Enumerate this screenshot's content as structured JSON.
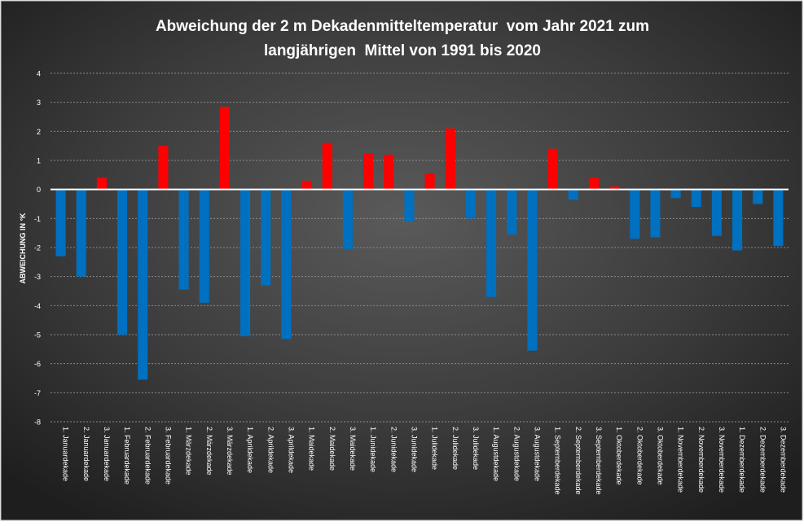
{
  "chart_data": {
    "type": "bar",
    "title_line1": "Abweichung der 2 m Dekadenmitteltemperatur  vom Jahr 2021 zum",
    "title_line2": "langjährigen  Mittel von 1991 bis 2020",
    "ylabel": "ABWEICHUNG IN °K",
    "xlabel": "",
    "ylim": [
      -8,
      4
    ],
    "yticks": [
      "4",
      "3",
      "2",
      "1",
      "0",
      "-1",
      "-2",
      "-3",
      "-4",
      "-5",
      "-6",
      "-7",
      "-8"
    ],
    "grid": true,
    "legend": "none",
    "positive_color": "#ff0000",
    "negative_color": "#0070c0",
    "background_color": "#3a3a3a",
    "categories": [
      "1. Januardekade",
      "2. Januardekade",
      "3. Januardekade",
      "1. Februardekade",
      "2. Februardekade",
      "3. Februardekade",
      "1. Märzdekade",
      "2. Märzdekade",
      "3. Märzdekade",
      "1. Aprildekade",
      "2. Aprildekade",
      "3. Aprildekade",
      "1. Maidekade",
      "2. Maidekade",
      "3. Maidekade",
      "1. Junidekade",
      "2. Junidekade",
      "3. Junidekade",
      "1. Julidekade",
      "2. Julidekade",
      "3. Julidekade",
      "1. Augustdekade",
      "2. Augustdekade",
      "3. Augustdekade",
      "1. Septemberdekade",
      "2. Septemberdekade",
      "3. Septemberdekade",
      "1. Oktoberdekade",
      "2. Oktoberdekade",
      "3. Oktoberdekade",
      "1. Novemberdekade",
      "2. Novemberdekade",
      "3. Novemberdekade",
      "1. Dezemberdekade",
      "2. Dezemberdekade",
      "3. Dezemberdekade"
    ],
    "values": [
      -2.3,
      -3.0,
      0.4,
      -5.0,
      -6.55,
      1.5,
      -3.45,
      -3.9,
      2.85,
      -5.05,
      -3.3,
      -5.15,
      0.3,
      1.6,
      -2.05,
      1.25,
      1.2,
      -1.1,
      0.55,
      2.1,
      -1.0,
      -3.7,
      -1.55,
      -5.55,
      1.4,
      -0.35,
      0.4,
      0.1,
      -1.7,
      -1.65,
      -0.3,
      -0.6,
      -1.6,
      -2.1,
      -0.5,
      -1.95
    ]
  }
}
